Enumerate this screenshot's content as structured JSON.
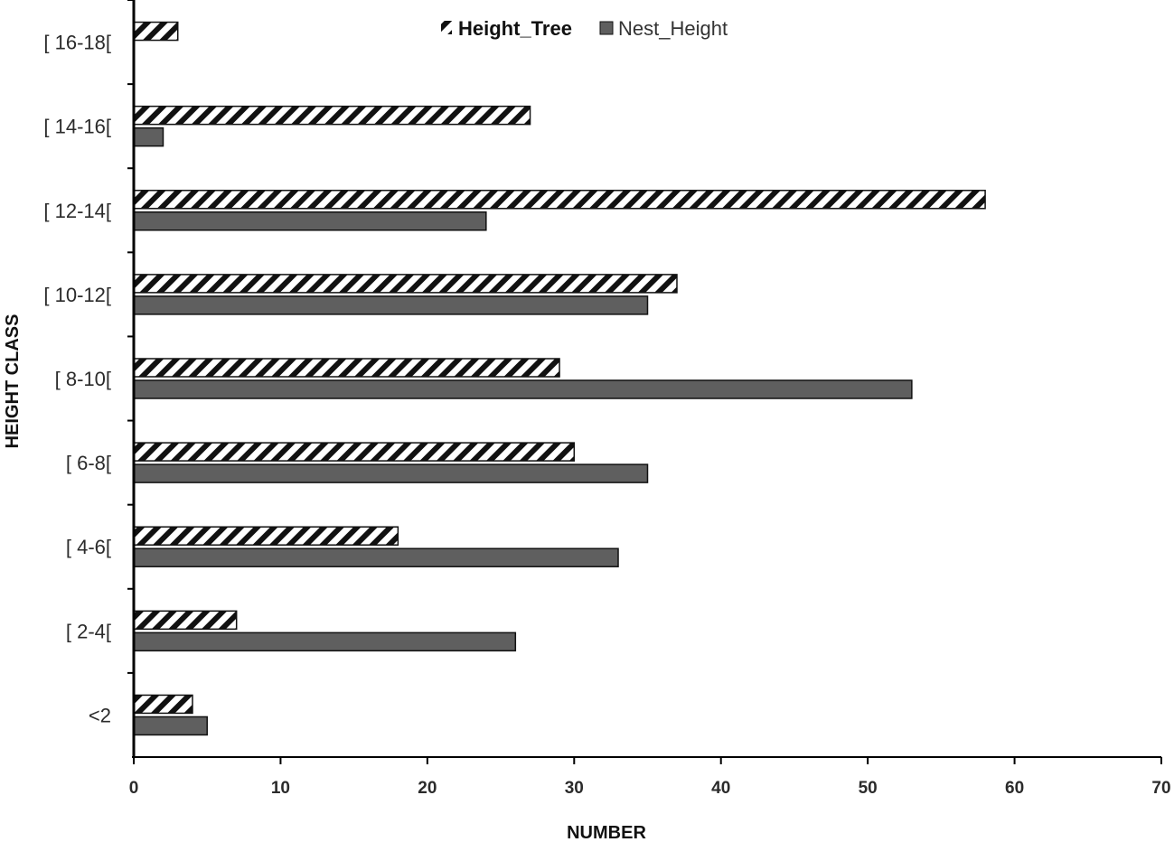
{
  "chart_data": {
    "type": "bar",
    "orientation": "horizontal",
    "categories": [
      "<2",
      "[ 2-4[",
      "[ 4-6[",
      "[ 6-8[",
      "[ 8-10[",
      "[ 10-12[",
      "[ 12-14[",
      "[ 14-16[",
      "[ 16-18["
    ],
    "series": [
      {
        "name": "Height_Tree",
        "values": [
          4,
          7,
          18,
          30,
          29,
          37,
          58,
          27,
          3
        ],
        "pattern": "diagonal-hatch",
        "color": "#111111"
      },
      {
        "name": "Nest_Height",
        "values": [
          5,
          26,
          33,
          35,
          53,
          35,
          24,
          2,
          0
        ],
        "pattern": "solid",
        "color": "#5f5f5f"
      }
    ],
    "xlabel": "NUMBER",
    "ylabel": "HEIGHT CLASS",
    "xlim": [
      0,
      70
    ],
    "xticks": [
      0,
      10,
      20,
      30,
      40,
      50,
      60,
      70
    ],
    "grid": false,
    "legend_position": "top"
  }
}
